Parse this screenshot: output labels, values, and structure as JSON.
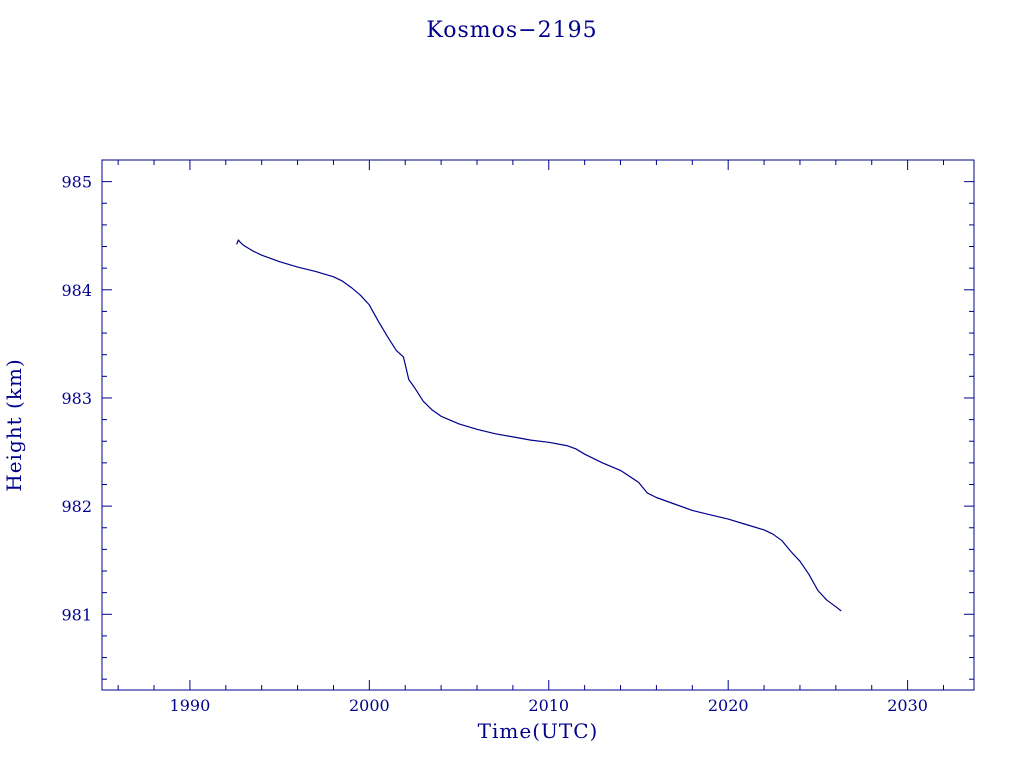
{
  "chart_data": {
    "type": "line",
    "title": "Kosmos−2195",
    "xlabel": "Time(UTC)",
    "ylabel": "Height (km)",
    "xlim": [
      1985.1,
      2033.7
    ],
    "ylim": [
      980.3,
      985.2
    ],
    "x_ticks": [
      1990,
      2000,
      2010,
      2020,
      2030
    ],
    "x_tick_labels": [
      "1990",
      "2000",
      "2010",
      "2020",
      "2030"
    ],
    "y_ticks": [
      981,
      982,
      983,
      984,
      985
    ],
    "y_tick_labels": [
      "981",
      "982",
      "983",
      "984",
      "985"
    ],
    "grid": false,
    "color": "#00008b",
    "series": [
      {
        "x": [
          1992.6,
          1992.7,
          1992.8,
          1993.0,
          1993.5,
          1994.0,
          1995.0,
          1996.0,
          1997.0,
          1998.0,
          1998.5,
          1999.0,
          1999.5,
          2000.0,
          2000.5,
          2001.0,
          2001.5,
          2001.9,
          2002.2,
          2002.5,
          2003.0,
          2003.5,
          2004.0,
          2005.0,
          2006.0,
          2007.0,
          2008.0,
          2009.0,
          2010.0,
          2011.0,
          2011.5,
          2012.0,
          2013.0,
          2014.0,
          2015.0,
          2015.5,
          2016.0,
          2017.0,
          2018.0,
          2019.0,
          2020.0,
          2021.0,
          2022.0,
          2022.5,
          2023.0,
          2023.5,
          2024.0,
          2024.5,
          2025.0,
          2025.5,
          2026.0,
          2026.3
        ],
        "y": [
          984.42,
          984.46,
          984.44,
          984.41,
          984.36,
          984.32,
          984.26,
          984.21,
          984.17,
          984.12,
          984.08,
          984.02,
          983.95,
          983.86,
          983.71,
          983.57,
          983.44,
          983.38,
          983.17,
          983.1,
          982.97,
          982.89,
          982.83,
          982.76,
          982.71,
          982.67,
          982.64,
          982.61,
          982.59,
          982.56,
          982.53,
          982.48,
          982.4,
          982.33,
          982.22,
          982.12,
          982.08,
          982.02,
          981.96,
          981.92,
          981.88,
          981.83,
          981.78,
          981.74,
          981.68,
          981.58,
          981.49,
          981.37,
          981.22,
          981.13,
          981.07,
          981.03
        ]
      }
    ]
  }
}
